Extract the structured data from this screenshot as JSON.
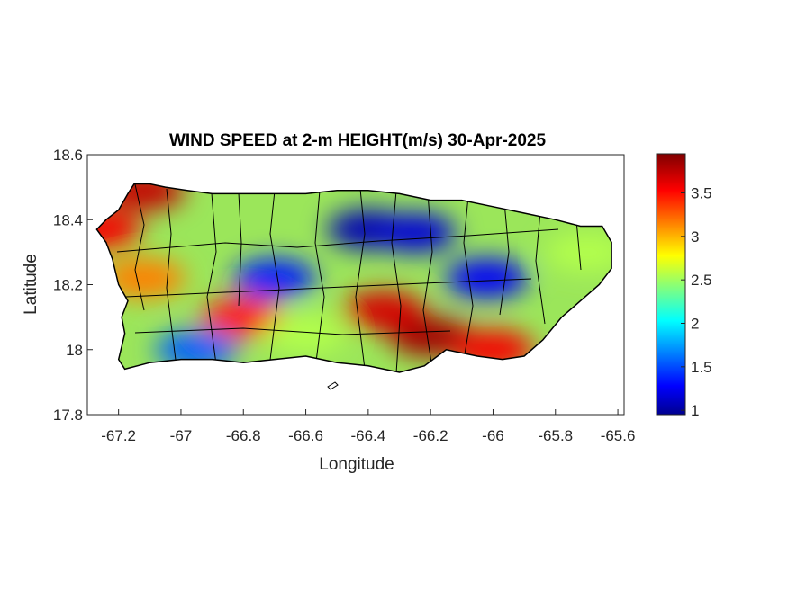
{
  "map": {
    "title": "WIND SPEED at 2-m HEIGHT(m/s) 30-Apr-2025",
    "xlabel": "Longitude",
    "ylabel": "Latitude",
    "xlim": [
      -67.3,
      -65.58
    ],
    "ylim": [
      17.8,
      18.6
    ],
    "xticks": [
      {
        "value": -67.2,
        "label": "-67.2"
      },
      {
        "value": -67.0,
        "label": "-67"
      },
      {
        "value": -66.8,
        "label": "-66.8"
      },
      {
        "value": -66.6,
        "label": "-66.6"
      },
      {
        "value": -66.4,
        "label": "-66.4"
      },
      {
        "value": -66.2,
        "label": "-66.2"
      },
      {
        "value": -66.0,
        "label": "-66"
      },
      {
        "value": -65.8,
        "label": "-65.8"
      },
      {
        "value": -65.6,
        "label": "-65.6"
      }
    ],
    "yticks": [
      {
        "value": 17.8,
        "label": "17.8"
      },
      {
        "value": 18.0,
        "label": "18"
      },
      {
        "value": 18.2,
        "label": "18.2"
      },
      {
        "value": 18.4,
        "label": "18.4"
      },
      {
        "value": 18.6,
        "label": "18.6"
      }
    ],
    "colormap": "jet",
    "colorbar": {
      "min": 0.95,
      "max": 3.95,
      "ticks": [
        {
          "value": 1,
          "label": "1"
        },
        {
          "value": 1.5,
          "label": "1.5"
        },
        {
          "value": 2,
          "label": "2"
        },
        {
          "value": 2.5,
          "label": "2.5"
        },
        {
          "value": 3,
          "label": "3"
        },
        {
          "value": 3.5,
          "label": "3.5"
        }
      ]
    },
    "island_outline_lonlat": [
      [
        -67.27,
        18.37
      ],
      [
        -67.24,
        18.4
      ],
      [
        -67.2,
        18.43
      ],
      [
        -67.17,
        18.48
      ],
      [
        -67.15,
        18.51
      ],
      [
        -67.1,
        18.51
      ],
      [
        -67.05,
        18.5
      ],
      [
        -66.98,
        18.49
      ],
      [
        -66.9,
        18.48
      ],
      [
        -66.8,
        18.48
      ],
      [
        -66.7,
        18.48
      ],
      [
        -66.6,
        18.48
      ],
      [
        -66.5,
        18.49
      ],
      [
        -66.4,
        18.49
      ],
      [
        -66.3,
        18.48
      ],
      [
        -66.2,
        18.46
      ],
      [
        -66.1,
        18.46
      ],
      [
        -66.0,
        18.44
      ],
      [
        -65.9,
        18.42
      ],
      [
        -65.8,
        18.4
      ],
      [
        -65.72,
        18.38
      ],
      [
        -65.65,
        18.38
      ],
      [
        -65.62,
        18.33
      ],
      [
        -65.62,
        18.25
      ],
      [
        -65.66,
        18.2
      ],
      [
        -65.72,
        18.15
      ],
      [
        -65.78,
        18.1
      ],
      [
        -65.84,
        18.03
      ],
      [
        -65.9,
        17.98
      ],
      [
        -65.97,
        17.97
      ],
      [
        -66.05,
        17.98
      ],
      [
        -66.15,
        18.0
      ],
      [
        -66.22,
        17.95
      ],
      [
        -66.3,
        17.93
      ],
      [
        -66.4,
        17.95
      ],
      [
        -66.5,
        17.96
      ],
      [
        -66.6,
        17.98
      ],
      [
        -66.7,
        17.97
      ],
      [
        -66.8,
        17.96
      ],
      [
        -66.9,
        17.97
      ],
      [
        -67.0,
        17.97
      ],
      [
        -67.1,
        17.96
      ],
      [
        -67.18,
        17.94
      ],
      [
        -67.2,
        17.97
      ],
      [
        -67.18,
        18.05
      ],
      [
        -67.19,
        18.1
      ],
      [
        -67.17,
        18.15
      ],
      [
        -67.2,
        18.2
      ],
      [
        -67.22,
        18.28
      ],
      [
        -67.24,
        18.33
      ]
    ],
    "wind_hotspots": [
      {
        "lon": -66.2,
        "lat": 18.04,
        "value": 3.85
      },
      {
        "lon": -66.35,
        "lat": 18.12,
        "value": 3.7
      },
      {
        "lon": -66.0,
        "lat": 18.0,
        "value": 3.6
      },
      {
        "lon": -66.8,
        "lat": 18.1,
        "value": 3.5
      },
      {
        "lon": -67.12,
        "lat": 18.49,
        "value": 3.75
      },
      {
        "lon": -67.26,
        "lat": 18.37,
        "value": 3.6
      },
      {
        "lon": -67.12,
        "lat": 18.22,
        "value": 3.2
      },
      {
        "lon": -66.4,
        "lat": 18.37,
        "value": 1.1
      },
      {
        "lon": -66.25,
        "lat": 18.36,
        "value": 1.2
      },
      {
        "lon": -66.02,
        "lat": 18.22,
        "value": 1.3
      },
      {
        "lon": -66.7,
        "lat": 18.22,
        "value": 1.4
      },
      {
        "lon": -66.95,
        "lat": 18.0,
        "value": 1.6
      },
      {
        "lon": -65.7,
        "lat": 18.3,
        "value": 2.6
      },
      {
        "lon": -66.6,
        "lat": 18.05,
        "value": 2.6
      }
    ]
  }
}
